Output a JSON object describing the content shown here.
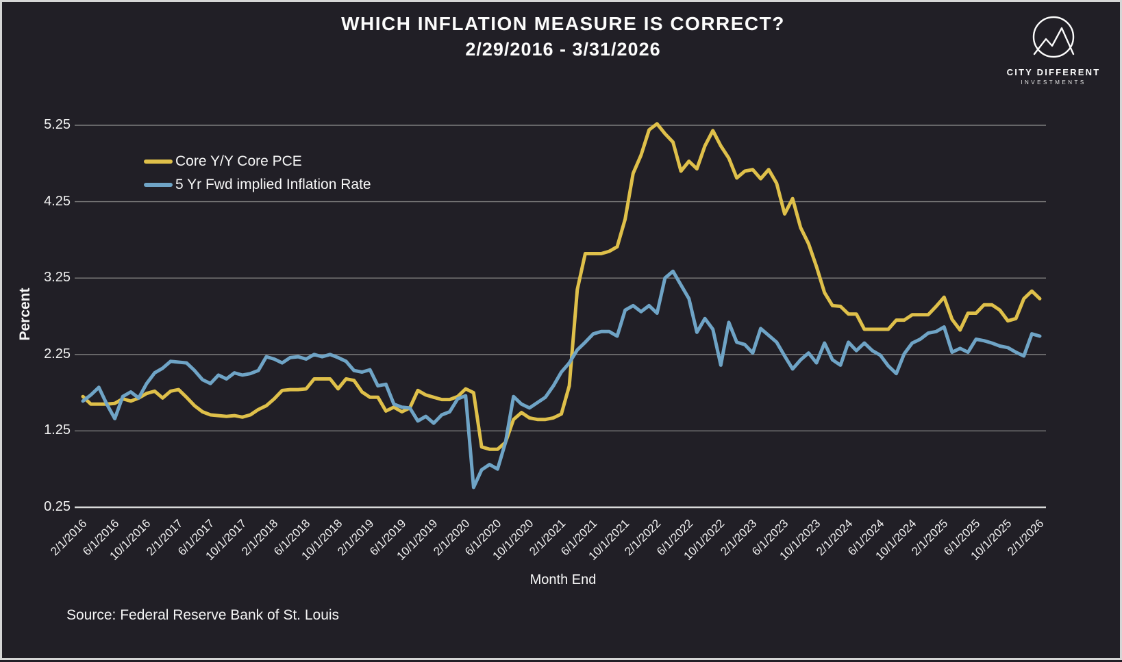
{
  "page": {
    "background": "#211f26",
    "frame_color": "#d6d6d6"
  },
  "header": {
    "title": "WHICH INFLATION MEASURE IS CORRECT?",
    "subtitle": "2/29/2016 - 3/31/2026"
  },
  "logo": {
    "name": "City Different Investments logo",
    "line1": "CITY DIFFERENT",
    "line2": "INVESTMENTS"
  },
  "footer": {
    "source": "Source: Federal Reserve Bank of St. Louis"
  },
  "chart_data": {
    "type": "line",
    "title": "WHICH INFLATION MEASURE IS CORRECT? 2/29/2016 - 3/31/2026",
    "xlabel": "Month End",
    "ylabel": "Percent",
    "grid": true,
    "legend_position": "upper left",
    "ylim": [
      0.25,
      5.25
    ],
    "y_ticks": [
      "5.25",
      "4.25",
      "3.25",
      "2.25",
      "1.25",
      "0.25"
    ],
    "x_start_month": "2/2016",
    "x_end_month": "2/2026",
    "x_tick_labels": [
      "2/1/2016",
      "6/1/2016",
      "10/1/2016",
      "2/1/2017",
      "6/1/2017",
      "10/1/2017",
      "2/1/2018",
      "6/1/2018",
      "10/1/2018",
      "2/1/2019",
      "6/1/2019",
      "10/1/2019",
      "2/1/2020",
      "6/1/2020",
      "10/1/2020",
      "2/1/2021",
      "6/1/2021",
      "10/1/2021",
      "2/1/2022",
      "6/1/2022",
      "10/1/2022",
      "2/1/2023",
      "6/1/2023",
      "10/1/2023",
      "2/1/2024",
      "6/1/2024",
      "10/1/2024",
      "2/1/2025",
      "6/1/2025",
      "10/1/2025",
      "2/1/2026"
    ],
    "axis_color": "#d9d9d9",
    "gridline_color": "#7e7e7e",
    "series": [
      {
        "name": "Core Y/Y Core PCE",
        "color": "#dfc04a",
        "values": [
          1.7,
          1.6,
          1.6,
          1.6,
          1.61,
          1.67,
          1.64,
          1.68,
          1.74,
          1.77,
          1.68,
          1.77,
          1.79,
          1.69,
          1.58,
          1.5,
          1.46,
          1.45,
          1.44,
          1.45,
          1.43,
          1.46,
          1.53,
          1.58,
          1.67,
          1.78,
          1.79,
          1.79,
          1.8,
          1.93,
          1.93,
          1.93,
          1.8,
          1.93,
          1.91,
          1.76,
          1.69,
          1.69,
          1.51,
          1.56,
          1.5,
          1.55,
          1.78,
          1.72,
          1.69,
          1.66,
          1.66,
          1.7,
          1.8,
          1.75,
          1.04,
          1.01,
          1.01,
          1.1,
          1.4,
          1.49,
          1.42,
          1.4,
          1.4,
          1.42,
          1.47,
          1.84,
          3.1,
          3.57,
          3.57,
          3.57,
          3.6,
          3.66,
          4.02,
          4.62,
          4.86,
          5.19,
          5.27,
          5.14,
          5.03,
          4.65,
          4.78,
          4.68,
          4.98,
          5.18,
          4.98,
          4.82,
          4.56,
          4.65,
          4.67,
          4.55,
          4.67,
          4.49,
          4.09,
          4.29,
          3.91,
          3.7,
          3.4,
          3.06,
          2.89,
          2.88,
          2.78,
          2.78,
          2.58,
          2.58,
          2.58,
          2.58,
          2.7,
          2.7,
          2.77,
          2.77,
          2.77,
          2.88,
          3.0,
          2.71,
          2.57,
          2.79,
          2.79,
          2.9,
          2.9,
          2.83,
          2.69,
          2.72,
          2.98,
          3.08,
          2.98
        ]
      },
      {
        "name": "5 Yr Fwd implied Inflation Rate",
        "color": "#6fa4c6",
        "values": [
          1.64,
          1.72,
          1.82,
          1.6,
          1.41,
          1.7,
          1.76,
          1.68,
          1.87,
          2.01,
          2.07,
          2.16,
          2.15,
          2.14,
          2.04,
          1.92,
          1.87,
          1.98,
          1.93,
          2.01,
          1.98,
          2.0,
          2.04,
          2.22,
          2.19,
          2.14,
          2.21,
          2.22,
          2.19,
          2.25,
          2.22,
          2.25,
          2.21,
          2.16,
          2.04,
          2.02,
          2.05,
          1.84,
          1.86,
          1.6,
          1.56,
          1.55,
          1.38,
          1.44,
          1.35,
          1.46,
          1.5,
          1.67,
          1.71,
          0.51,
          0.74,
          0.81,
          0.75,
          1.1,
          1.7,
          1.6,
          1.55,
          1.62,
          1.69,
          1.84,
          2.02,
          2.14,
          2.31,
          2.41,
          2.52,
          2.55,
          2.55,
          2.49,
          2.83,
          2.89,
          2.81,
          2.89,
          2.79,
          3.25,
          3.34,
          3.16,
          2.98,
          2.54,
          2.72,
          2.58,
          2.11,
          2.67,
          2.41,
          2.38,
          2.27,
          2.59,
          2.5,
          2.41,
          2.23,
          2.06,
          2.18,
          2.27,
          2.14,
          2.4,
          2.18,
          2.11,
          2.41,
          2.3,
          2.4,
          2.3,
          2.24,
          2.1,
          2.0,
          2.26,
          2.4,
          2.45,
          2.53,
          2.55,
          2.61,
          2.28,
          2.33,
          2.28,
          2.45,
          2.43,
          2.4,
          2.36,
          2.34,
          2.28,
          2.23,
          2.52,
          2.49
        ]
      }
    ]
  }
}
